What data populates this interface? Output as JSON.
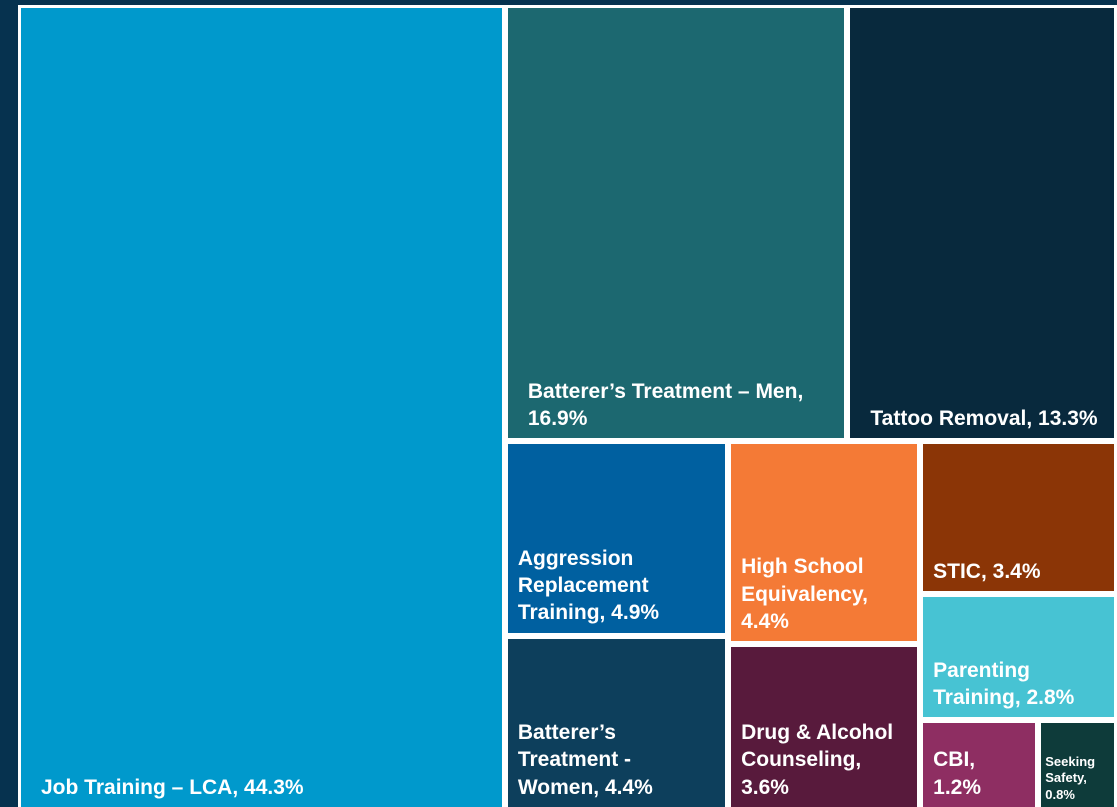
{
  "chart_data": {
    "type": "treemap",
    "value_labels": [
      "Job Training – LCA, 44.3%",
      "Batterer’s Treatment – Men, 16.9%",
      "Tattoo Removal, 13.3%",
      "Aggression Replacement Training, 4.9%",
      "Batterer’s Treatment - Women, 4.4%",
      "High School Equivalency, 4.4%",
      "Drug & Alcohol Counseling, 3.6%",
      "STIC, 3.4%",
      "Parenting Training, 2.8%",
      "CBI, 1.2%",
      "Seeking Safety, 0.8%"
    ],
    "values": [
      44.3,
      16.9,
      13.3,
      4.9,
      4.4,
      4.4,
      3.6,
      3.4,
      2.8,
      1.2,
      0.8
    ],
    "colors": [
      "#0099cc",
      "#1c6870",
      "#08293d",
      "#0060a0",
      "#0d3f5c",
      "#f47a36",
      "#581a3c",
      "#8b3506",
      "#47c3d3",
      "#8e2e62",
      "#0e3b3a"
    ]
  }
}
